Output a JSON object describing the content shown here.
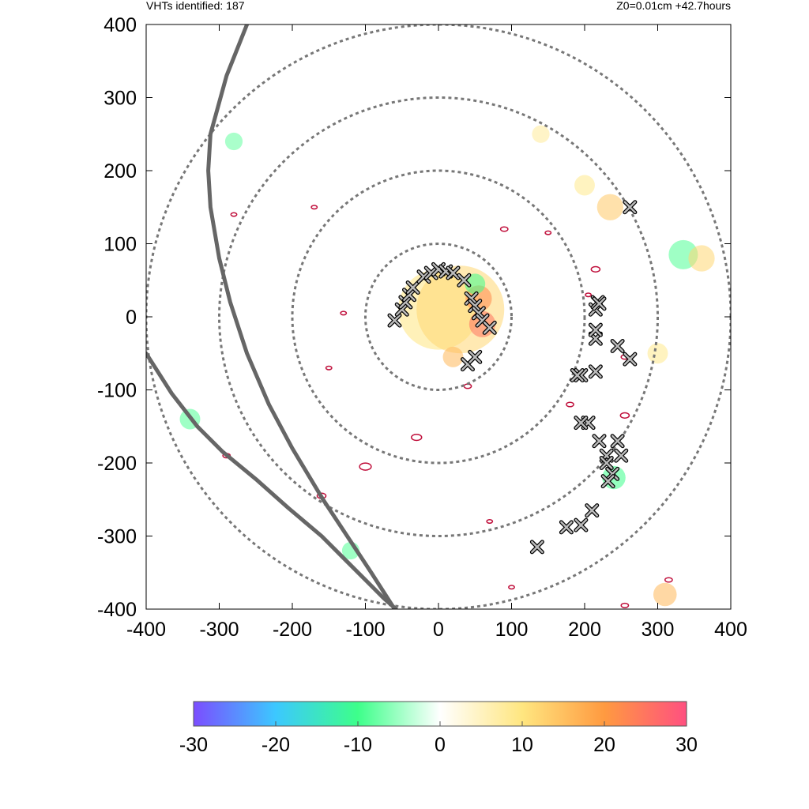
{
  "header": {
    "left_text": "VHTs identified: 187",
    "right_text": "Z0=0.01cm  +42.7hours"
  },
  "chart_data": [
    {
      "type": "scatter",
      "title": "",
      "xlabel": "",
      "ylabel": "",
      "xlim": [
        -400,
        400
      ],
      "ylim": [
        -400,
        400
      ],
      "x_ticks": [
        "-400",
        "-300",
        "-200",
        "-100",
        "0",
        "100",
        "200",
        "300",
        "400"
      ],
      "y_ticks": [
        "400",
        "300",
        "200",
        "100",
        "0",
        "-100",
        "-200",
        "-300",
        "-400"
      ],
      "grid": false,
      "range_rings": [
        100,
        200,
        300,
        400
      ],
      "colors": {
        "ring": "#777777",
        "coastline": "#666666",
        "contour": "#c0103c",
        "marker_fill": "#bbbbbb",
        "marker_edge": "#000000"
      },
      "coastlines": [
        {
          "name": "",
          "points": [
            [
              -262,
              400
            ],
            [
              -290,
              330
            ],
            [
              -312,
              250
            ],
            [
              -315,
              200
            ],
            [
              -312,
              150
            ],
            [
              -300,
              80
            ],
            [
              -285,
              20
            ],
            [
              -262,
              -50
            ],
            [
              -232,
              -120
            ],
            [
              -200,
              -180
            ],
            [
              -158,
              -250
            ],
            [
              -125,
              -300
            ],
            [
              -92,
              -350
            ],
            [
              -60,
              -400
            ]
          ]
        },
        {
          "name": "",
          "points": [
            [
              -400,
              -50
            ],
            [
              -365,
              -105
            ],
            [
              -330,
              -150
            ],
            [
              -295,
              -185
            ],
            [
              -250,
              -222
            ],
            [
              -205,
              -262
            ],
            [
              -160,
              -300
            ],
            [
              -130,
              -330
            ],
            [
              -100,
              -360
            ],
            [
              -75,
              -385
            ],
            [
              -58,
              -400
            ]
          ]
        }
      ],
      "series": [
        {
          "name": "",
          "marker": "x",
          "x": [
            -60,
            -50,
            -45,
            -40,
            -35,
            -20,
            -10,
            0,
            10,
            20,
            35,
            45,
            50,
            55,
            60,
            70,
            40,
            50,
            195,
            215,
            205,
            220,
            215,
            245,
            262,
            190,
            215,
            195,
            230,
            245,
            230,
            250,
            238,
            232,
            210,
            195,
            175,
            135,
            215
          ],
          "y": [
            -5,
            10,
            20,
            30,
            40,
            55,
            60,
            65,
            62,
            60,
            50,
            25,
            15,
            5,
            -5,
            -15,
            -65,
            -55,
            -80,
            -75,
            -145,
            -170,
            -30,
            -40,
            -58,
            -80,
            -18,
            -145,
            -190,
            -170,
            -200,
            -190,
            -215,
            -225,
            -265,
            -285,
            -288,
            -315,
            10
          ],
          "size": [
            1,
            1,
            1,
            1,
            1,
            1,
            1,
            1,
            1,
            1,
            1,
            1,
            1,
            1,
            1,
            1,
            1,
            1,
            1,
            1,
            1,
            1,
            1,
            1,
            1,
            1,
            1,
            1,
            1,
            1,
            1,
            1,
            1,
            1,
            1,
            1,
            1,
            1,
            1
          ]
        },
        {
          "name": "",
          "marker": "x",
          "x": [
            262,
            218,
            220
          ],
          "y": [
            150,
            20,
            18
          ],
          "size": [
            1,
            1,
            1
          ]
        }
      ],
      "field_blobs": [
        {
          "x": 0,
          "y": 10,
          "r": 55,
          "value": 10
        },
        {
          "x": 30,
          "y": 10,
          "r": 60,
          "value": 12
        },
        {
          "x": 55,
          "y": 25,
          "r": 18,
          "value": 22
        },
        {
          "x": 60,
          "y": -10,
          "r": 18,
          "value": 25
        },
        {
          "x": 50,
          "y": 45,
          "r": 14,
          "value": -10
        },
        {
          "x": 20,
          "y": -55,
          "r": 14,
          "value": 16
        },
        {
          "x": 235,
          "y": 150,
          "r": 18,
          "value": 14
        },
        {
          "x": 335,
          "y": 85,
          "r": 20,
          "value": -9
        },
        {
          "x": 360,
          "y": 80,
          "r": 18,
          "value": 12
        },
        {
          "x": 240,
          "y": -220,
          "r": 16,
          "value": -10
        },
        {
          "x": 310,
          "y": -380,
          "r": 16,
          "value": 16
        },
        {
          "x": -340,
          "y": -140,
          "r": 14,
          "value": -9
        },
        {
          "x": -120,
          "y": -320,
          "r": 12,
          "value": -9
        },
        {
          "x": 200,
          "y": 180,
          "r": 14,
          "value": 9
        },
        {
          "x": -280,
          "y": 240,
          "r": 12,
          "value": -8
        },
        {
          "x": 300,
          "y": -50,
          "r": 14,
          "value": 9
        },
        {
          "x": 140,
          "y": 250,
          "r": 12,
          "value": 8
        }
      ],
      "contours": [
        {
          "x": -290,
          "y": -190,
          "r": 5
        },
        {
          "x": -160,
          "y": -245,
          "r": 6
        },
        {
          "x": -100,
          "y": -205,
          "r": 8
        },
        {
          "x": -30,
          "y": -165,
          "r": 7
        },
        {
          "x": 40,
          "y": -95,
          "r": 5
        },
        {
          "x": 70,
          "y": -280,
          "r": 4
        },
        {
          "x": -150,
          "y": -70,
          "r": 4
        },
        {
          "x": -130,
          "y": 5,
          "r": 4
        },
        {
          "x": 90,
          "y": 120,
          "r": 5
        },
        {
          "x": 150,
          "y": 115,
          "r": 4
        },
        {
          "x": 205,
          "y": 30,
          "r": 4
        },
        {
          "x": 215,
          "y": 65,
          "r": 6
        },
        {
          "x": 255,
          "y": -55,
          "r": 5
        },
        {
          "x": 255,
          "y": -135,
          "r": 6
        },
        {
          "x": 180,
          "y": -120,
          "r": 5
        },
        {
          "x": -170,
          "y": 150,
          "r": 4
        },
        {
          "x": -280,
          "y": 140,
          "r": 4
        },
        {
          "x": 315,
          "y": -360,
          "r": 5
        },
        {
          "x": 255,
          "y": -395,
          "r": 5
        },
        {
          "x": 100,
          "y": -370,
          "r": 4
        }
      ],
      "colorbar": {
        "range": [
          -30,
          30
        ],
        "ticks": [
          "-30",
          "-20",
          "-10",
          "0",
          "10",
          "20",
          "30"
        ],
        "colors": [
          "#7b4dff",
          "#3cc8ff",
          "#3dff8a",
          "#ffffff",
          "#ffe680",
          "#ff9a40",
          "#ff5080"
        ]
      }
    }
  ]
}
